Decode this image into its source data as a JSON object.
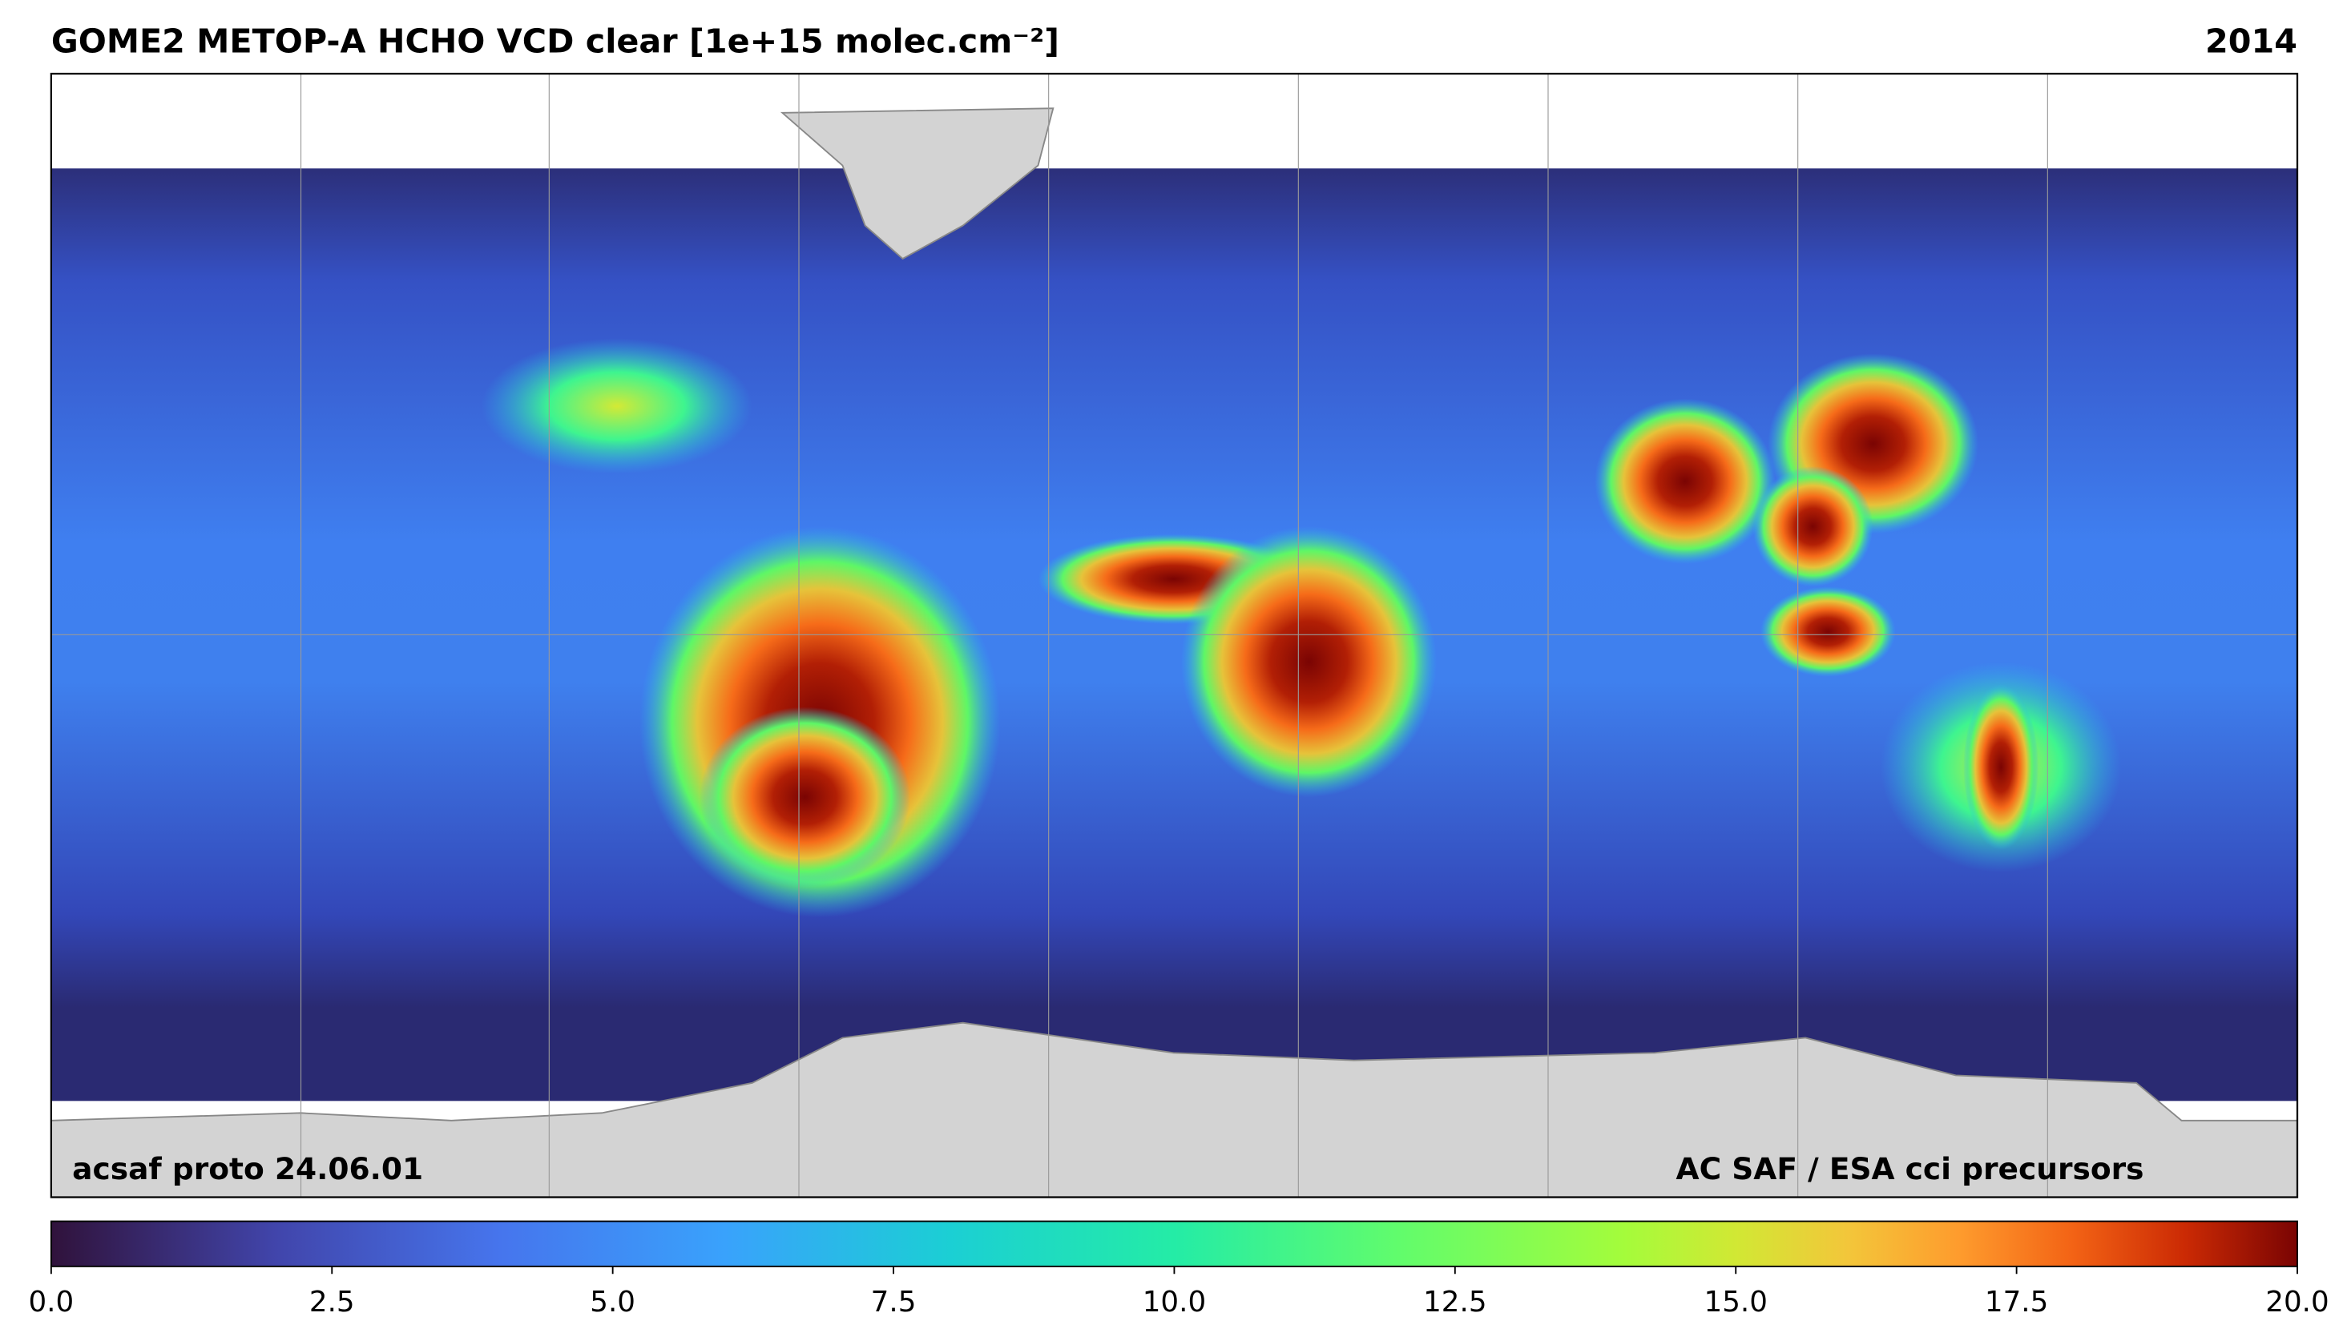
{
  "header": {
    "title": "GOME2 METOP-A HCHO VCD clear [1e+15 molec.cm⁻²]",
    "year": "2014"
  },
  "footer": {
    "left": "acsaf proto 24.06.01",
    "right": "AC SAF / ESA cci precursors"
  },
  "colorbar": {
    "range": [
      0,
      20
    ],
    "ticks": [
      {
        "value": 0,
        "label": "0.0"
      },
      2.5,
      {
        "value": 5,
        "label": "5.0"
      },
      7.5,
      {
        "value": 10,
        "label": "10.0"
      },
      12.5,
      {
        "value": 15,
        "label": "15.0"
      },
      17.5,
      {
        "value": 20,
        "label": "20.0"
      }
    ]
  }
}
